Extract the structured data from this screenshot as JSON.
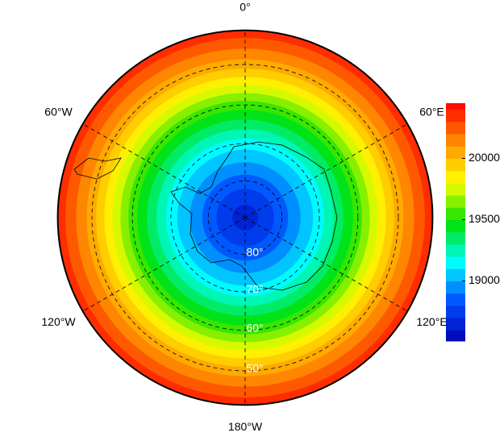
{
  "chart_data": {
    "type": "polar-contour",
    "projection": "south-polar-stereographic",
    "boundary_lat": -42,
    "field": {
      "lat": [
        -90,
        -80,
        -70,
        -60,
        -50,
        -40
      ],
      "values": [
        18620,
        18850,
        19150,
        19550,
        20050,
        20450
      ]
    },
    "levels": [
      18600,
      18700,
      18800,
      18900,
      19000,
      19100,
      19200,
      19300,
      19400,
      19500,
      19600,
      19700,
      19800,
      19900,
      20000,
      20100,
      20200,
      20300,
      20400
    ],
    "colormap": [
      "#0000b4",
      "#0050ff",
      "#00ffff",
      "#00e000",
      "#ffff00",
      "#ff9000",
      "#ff0000"
    ],
    "clim": [
      18510,
      20450
    ],
    "cticks": [
      19000,
      19500,
      20000
    ],
    "lon_labels": [
      {
        "lon": 0,
        "label": "0°"
      },
      {
        "lon": 60,
        "label": "60°E"
      },
      {
        "lon": 120,
        "label": "120°E"
      },
      {
        "lon": 180,
        "label": "180°W"
      },
      {
        "lon": -120,
        "label": "120°W"
      },
      {
        "lon": -60,
        "label": "60°W"
      }
    ],
    "lat_labels": [
      {
        "lat": -80,
        "label": "80°"
      },
      {
        "lat": -70,
        "label": "70°"
      },
      {
        "lat": -60,
        "label": "60°"
      },
      {
        "lat": -50,
        "label": "50°"
      }
    ]
  }
}
